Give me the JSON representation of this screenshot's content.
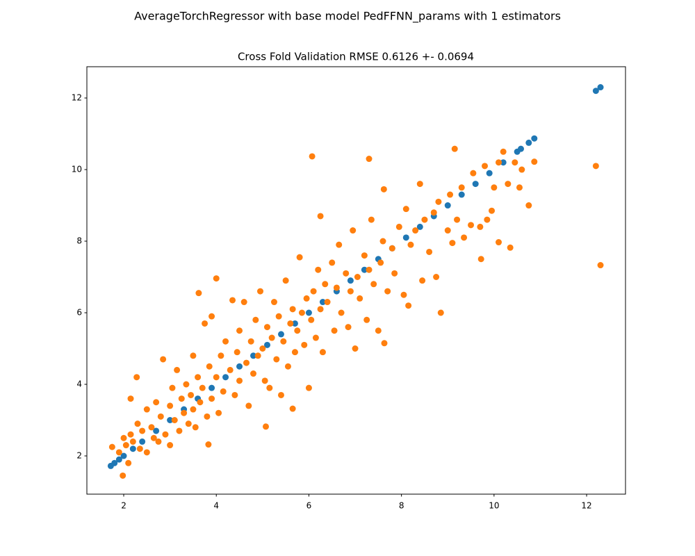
{
  "chart_data": {
    "type": "scatter",
    "title": "AverageTorchRegressor with base model PedFFNN_params with 1 estimators",
    "subtitle": "Cross Fold Validation RMSE 0.6126 +- 0.0694",
    "xlim": [
      1.204,
      12.84
    ],
    "ylim": [
      0.932,
      12.874
    ],
    "xticks": [
      2,
      4,
      6,
      8,
      10,
      12
    ],
    "yticks": [
      2,
      4,
      6,
      8,
      10,
      12
    ],
    "grid": false,
    "series": [
      {
        "color": "#1f77b4",
        "x": [
          1.72,
          1.8,
          1.9,
          2.0,
          2.2,
          2.4,
          2.7,
          3.0,
          3.3,
          3.6,
          3.9,
          4.2,
          4.5,
          4.8,
          5.1,
          5.4,
          5.7,
          6.0,
          6.3,
          6.6,
          6.9,
          7.2,
          7.5,
          7.8,
          8.1,
          8.4,
          8.7,
          9.0,
          9.3,
          9.6,
          9.9,
          10.2,
          10.5,
          10.58,
          10.75,
          10.87,
          12.2,
          12.3
        ],
        "values": [
          1.72,
          1.8,
          1.9,
          2.0,
          2.2,
          2.4,
          2.7,
          3.0,
          3.3,
          3.6,
          3.9,
          4.2,
          4.5,
          4.8,
          5.1,
          5.4,
          5.7,
          6.0,
          6.3,
          6.6,
          6.9,
          7.2,
          7.5,
          7.8,
          8.1,
          8.4,
          8.7,
          9.0,
          9.3,
          9.6,
          9.9,
          10.2,
          10.5,
          10.58,
          10.75,
          10.87,
          12.2,
          12.3
        ]
      },
      {
        "color": "#ff7f0e",
        "x": [
          1.75,
          1.9,
          2.0,
          2.05,
          2.1,
          2.15,
          2.2,
          2.3,
          2.35,
          2.4,
          2.5,
          2.5,
          2.6,
          2.65,
          2.7,
          2.75,
          2.8,
          2.85,
          2.9,
          3.0,
          3.0,
          3.05,
          3.1,
          3.15,
          3.2,
          3.25,
          3.3,
          3.35,
          3.4,
          3.45,
          3.5,
          3.5,
          3.55,
          3.6,
          3.65,
          3.7,
          3.75,
          3.8,
          3.85,
          3.9,
          3.9,
          4.0,
          4.05,
          4.1,
          4.15,
          4.2,
          4.3,
          4.35,
          4.4,
          4.45,
          4.5,
          4.5,
          4.6,
          4.65,
          4.7,
          4.75,
          4.8,
          4.85,
          4.9,
          4.95,
          5.0,
          5.05,
          5.1,
          5.15,
          5.2,
          5.25,
          5.3,
          5.35,
          5.4,
          5.45,
          5.5,
          5.55,
          5.6,
          5.65,
          5.7,
          5.75,
          5.8,
          5.85,
          5.9,
          5.95,
          6.0,
          6.05,
          6.1,
          6.15,
          6.2,
          6.25,
          6.3,
          6.35,
          6.4,
          6.5,
          6.55,
          6.6,
          6.65,
          6.7,
          6.8,
          6.85,
          6.9,
          6.95,
          7.0,
          7.05,
          7.1,
          7.2,
          7.25,
          7.3,
          7.35,
          7.4,
          7.5,
          7.55,
          7.6,
          7.7,
          7.8,
          7.85,
          7.95,
          8.05,
          8.1,
          8.15,
          8.2,
          8.3,
          8.4,
          8.45,
          8.5,
          8.6,
          8.7,
          8.75,
          8.8,
          9.0,
          9.05,
          9.1,
          9.2,
          9.3,
          9.35,
          9.5,
          9.55,
          9.7,
          9.8,
          9.85,
          9.95,
          10.0,
          10.1,
          10.2,
          10.3,
          10.45,
          10.55,
          10.6,
          6.07,
          7.3,
          12.2,
          12.3,
          9.72,
          10.1,
          10.35,
          8.85,
          7.63,
          5.07,
          5.65,
          3.62,
          4.0,
          1.98,
          2.28,
          2.15,
          9.15,
          10.75,
          10.87,
          6.25,
          7.62,
          3.83
        ],
        "values": [
          2.25,
          2.1,
          2.5,
          2.3,
          1.8,
          2.6,
          2.4,
          2.9,
          2.2,
          2.7,
          3.3,
          2.1,
          2.8,
          2.5,
          3.5,
          2.4,
          3.1,
          4.7,
          2.6,
          3.4,
          2.3,
          3.9,
          3.0,
          4.4,
          2.7,
          3.6,
          3.2,
          4.0,
          2.9,
          3.7,
          4.8,
          3.3,
          2.8,
          4.2,
          3.5,
          3.9,
          5.7,
          3.1,
          4.5,
          3.6,
          5.9,
          4.2,
          3.2,
          4.8,
          3.8,
          5.2,
          4.4,
          6.35,
          3.7,
          4.9,
          5.5,
          4.1,
          6.3,
          4.6,
          3.4,
          5.2,
          4.3,
          5.8,
          4.8,
          6.6,
          5.0,
          4.1,
          5.6,
          3.9,
          5.3,
          6.3,
          4.7,
          5.9,
          3.7,
          5.2,
          6.9,
          4.5,
          5.7,
          6.1,
          4.9,
          5.5,
          7.55,
          6.0,
          5.1,
          6.4,
          3.9,
          5.8,
          6.6,
          5.3,
          7.2,
          6.1,
          4.9,
          6.8,
          6.3,
          7.4,
          5.5,
          6.7,
          7.9,
          6.0,
          7.1,
          5.6,
          6.6,
          8.3,
          5.0,
          7.0,
          6.4,
          7.6,
          5.8,
          7.2,
          8.6,
          6.8,
          5.5,
          7.4,
          8.0,
          6.6,
          7.8,
          7.1,
          8.4,
          6.5,
          8.9,
          6.2,
          7.9,
          8.3,
          9.6,
          6.9,
          8.6,
          7.7,
          8.8,
          7.0,
          9.1,
          8.3,
          9.3,
          7.95,
          8.6,
          9.5,
          8.1,
          8.45,
          9.9,
          8.4,
          10.1,
          8.6,
          8.85,
          9.5,
          10.2,
          10.5,
          9.6,
          10.2,
          9.5,
          10.0,
          10.37,
          10.3,
          10.1,
          7.33,
          7.5,
          7.97,
          7.82,
          6.0,
          5.15,
          2.82,
          3.32,
          6.55,
          6.96,
          1.45,
          4.2,
          3.6,
          10.58,
          9.0,
          10.22,
          8.7,
          9.45,
          2.32
        ]
      }
    ]
  }
}
